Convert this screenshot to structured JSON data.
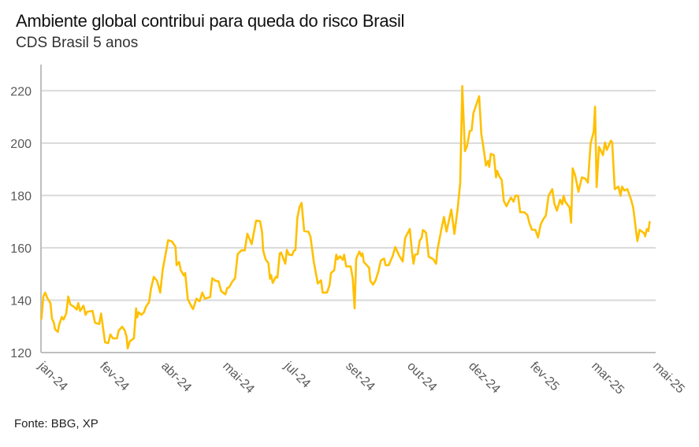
{
  "title": "Ambiente global contribui para queda do risco Brasil",
  "subtitle": "CDS Brasil 5 anos",
  "source": "Fonte: BBG, XP",
  "colors": {
    "line": "#FFC000",
    "grid": "#D9D9D9",
    "axis": "#BFBFBF",
    "tick_text": "#595959"
  },
  "chart_data": {
    "type": "line",
    "title": "Ambiente global contribui para queda do risco Brasil",
    "subtitle": "CDS Brasil 5 anos",
    "xlabel": "",
    "ylabel": "",
    "x_unit": "days since start of Jan 2024 (approx.)",
    "xlim": [
      0,
      500
    ],
    "ylim": [
      120,
      230
    ],
    "yticks": [
      120,
      140,
      160,
      180,
      200,
      220
    ],
    "xticks": [
      0,
      50,
      100,
      150,
      200,
      250,
      300,
      350,
      400,
      450,
      500
    ],
    "xtick_labels": [
      "jan-24",
      "fev-24",
      "abr-24",
      "mai-24",
      "jul-24",
      "set-24",
      "out-24",
      "dez-24",
      "fev-25",
      "mar-25",
      "mai-25"
    ],
    "grid": true,
    "legend": "none",
    "series": [
      {
        "name": "CDS Brasil 5 anos",
        "x": [
          0.4,
          1.9,
          3.4,
          5.1,
          7.7,
          9,
          10.5,
          11.5,
          13.7,
          14.7,
          16.9,
          18.4,
          20.5,
          22.2,
          23.9,
          26.9,
          29.1,
          30.3,
          31.8,
          34.6,
          36.3,
          37.6,
          41.9,
          44,
          47.4,
          48.9,
          52.1,
          54.7,
          56.4,
          58.5,
          61.8,
          63.2,
          66,
          68.2,
          69.7,
          70.5,
          72.4,
          75.6,
          77.4,
          78.2,
          79.5,
          81.6,
          83.8,
          85.3,
          88,
          89.5,
          91.7,
          94.4,
          97,
          99.1,
          101.3,
          103.4,
          106.6,
          109.4,
          110.3,
          112.4,
          113.7,
          116.2,
          117.3,
          119.4,
          122.6,
          123.7,
          126.5,
          129.1,
          131.2,
          133.3,
          137.6,
          139.3,
          141.9,
          144.4,
          146.6,
          150,
          151.5,
          153,
          155.8,
          157.9,
          160,
          163.2,
          165.8,
          167.9,
          171.4,
          175,
          178.2,
          179.9,
          180.8,
          182.9,
          185,
          186.3,
          187.2,
          188.5,
          191,
          192.3,
          194.2,
          195.3,
          198.7,
          200,
          201.7,
          204.3,
          205.6,
          207,
          208.5,
          210.3,
          212,
          214.1,
          217.7,
          219.2,
          222,
          225.2,
          227.8,
          229.1,
          232.7,
          234.8,
          235.9,
          238.5,
          240.2,
          241.4,
          243.2,
          245.5,
          246.6,
          248.3,
          251.9,
          253.6,
          255.1,
          256.4,
          259,
          260.5,
          261.5,
          262.6,
          266.9,
          267.9,
          270.1,
          272.2,
          274.4,
          276.5,
          279.1,
          280.3,
          282.9,
          286.1,
          288.2,
          291.4,
          294.2,
          296.2,
          300,
          301.7,
          303,
          304.3,
          306.4,
          308.1,
          309.6,
          310.7,
          313.2,
          315.4,
          319.2,
          321.4,
          322.4,
          325.6,
          327.8,
          329.9,
          333.8,
          336.3,
          338.9,
          341,
          342.7,
          344.9,
          346.6,
          348.8,
          350.3,
          351.7,
          353.9,
          356.4,
          358.2,
          359.9,
          362,
          363.7,
          364.6,
          365.9,
          368.4,
          370.1,
          371,
          372.7,
          374.8,
          376.5,
          378.7,
          380.8,
          382.3,
          384.4,
          385.9,
          388.1,
          389.8,
          393.2,
          395.8,
          397.3,
          399.4,
          402.2,
          404.3,
          406.5,
          408.6,
          410.7,
          412.9,
          415.9,
          417.6,
          419.7,
          422.3,
          424,
          425.1,
          426.5,
          430,
          431.2,
          432.5,
          434.7,
          437.2,
          440,
          442.8,
          444.9,
          447.1,
          449.6,
          450.7,
          452,
          453.9,
          457.1,
          458.8,
          460.3,
          463.5,
          464.6,
          466.7,
          469.7,
          471.4,
          472.7,
          474.4,
          477,
          480,
          481.7,
          485.1,
          487,
          490.6,
          491.5,
          492.8,
          494.1,
          495.1
        ],
        "y": [
          132.9,
          141.4,
          142.9,
          140.9,
          138.9,
          132.9,
          131.4,
          128.9,
          127.9,
          130.4,
          133.6,
          132.6,
          134.9,
          141.4,
          138.4,
          137.4,
          136.4,
          138.9,
          135.9,
          137.9,
          134.4,
          135.6,
          135.9,
          131.4,
          130.9,
          134.9,
          123.9,
          123.6,
          126.9,
          125.4,
          125.4,
          128.4,
          129.9,
          128.4,
          125.9,
          121.6,
          124.4,
          125.4,
          136.9,
          133.4,
          135.4,
          134.4,
          135.4,
          137.4,
          139.4,
          144.4,
          148.9,
          147.4,
          142.9,
          151.9,
          157.4,
          162.9,
          162.4,
          160.4,
          153.4,
          154.6,
          151.4,
          149.4,
          150.4,
          140.4,
          137.4,
          136.6,
          140.6,
          139.6,
          142.9,
          140.6,
          141.2,
          148.4,
          147.4,
          147.2,
          143.4,
          142.2,
          144.6,
          144.9,
          147.2,
          148.4,
          157.6,
          159.1,
          159,
          165.4,
          161.4,
          170.4,
          170.2,
          165.9,
          158.9,
          155.4,
          154.2,
          148.2,
          149.6,
          146.6,
          148.9,
          148.6,
          157.9,
          158.2,
          153.9,
          159.2,
          157.4,
          157.2,
          158.8,
          159.2,
          171.4,
          175.6,
          177.2,
          166.4,
          166.1,
          164.2,
          154.4,
          146.4,
          147.6,
          142.9,
          142.9,
          145.9,
          150.4,
          151.4,
          157.4,
          155.6,
          156.8,
          155.4,
          157.4,
          152.9,
          152.9,
          148.4,
          136.9,
          155.9,
          158.6,
          156.9,
          157.9,
          154.6,
          152.4,
          147.4,
          145.9,
          147.6,
          150.9,
          155.2,
          155.9,
          153.4,
          153.4,
          156.9,
          160.3,
          157,
          154.8,
          163.8,
          167.2,
          158.8,
          153.9,
          157.4,
          157.6,
          162.8,
          163.8,
          166.8,
          165.8,
          156.6,
          155.6,
          153.9,
          158.8,
          166.8,
          171.8,
          166.2,
          174.6,
          165.3,
          174.8,
          184.8,
          221.8,
          196.9,
          198.9,
          204.6,
          204.9,
          211.4,
          214.4,
          217.9,
          203.4,
          198.4,
          191.4,
          193.2,
          190.9,
          195.9,
          195.4,
          186.9,
          189.4,
          187.4,
          185.9,
          177.9,
          175.9,
          177.9,
          179.2,
          177.6,
          179.9,
          179.9,
          173.6,
          173.6,
          172.4,
          169.4,
          166.9,
          166.9,
          163.9,
          168.9,
          170.9,
          172.4,
          179.9,
          182.4,
          176.9,
          174.2,
          178.4,
          176.6,
          179.9,
          177.6,
          175.4,
          169.6,
          190.4,
          187.4,
          181.4,
          186.9,
          186.4,
          184.9,
          199.9,
          204.4,
          213.9,
          183.2,
          198.6,
          195.4,
          200.2,
          197.4,
          200.9,
          200.4,
          182.4,
          183.4,
          179.9,
          183.4,
          181.9,
          182.4,
          178.4,
          175.4,
          162.6,
          166.9,
          165.6,
          164.4,
          167.2,
          166.4,
          169.9
        ]
      }
    ]
  }
}
